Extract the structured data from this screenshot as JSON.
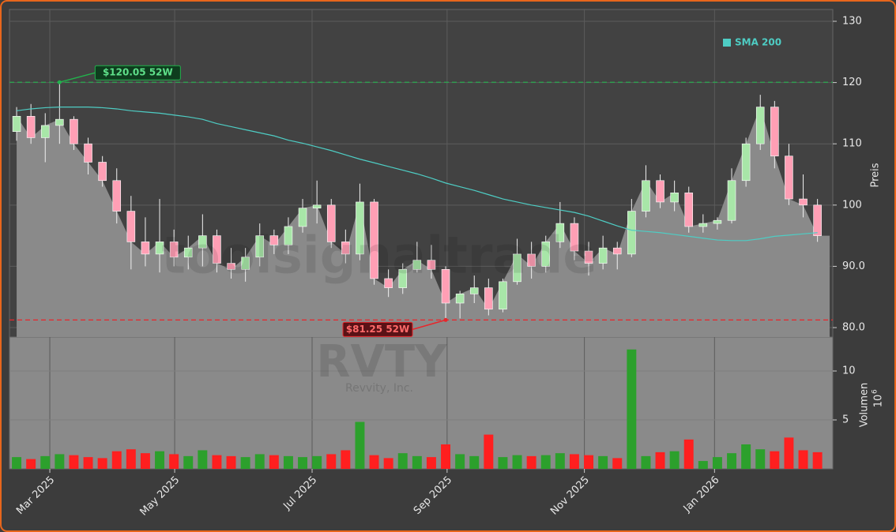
{
  "chart_data": {
    "type": "candlestick",
    "watermark": "toolsignaltrade",
    "ticker": "RVTY",
    "company": "Revvity, Inc.",
    "open": [
      112,
      114.5,
      111,
      113,
      114,
      110,
      107,
      104,
      99,
      94,
      92,
      94,
      91.5,
      93,
      95,
      90.5,
      89.5,
      91.5,
      95,
      93.5,
      96.5,
      99.5,
      100,
      94,
      92,
      100.5,
      88,
      86.5,
      89.5,
      91,
      89.5,
      84,
      85.5,
      86.5,
      83,
      87.5,
      92,
      90,
      94,
      97,
      92.5,
      90.5,
      93,
      92,
      99,
      104,
      100.5,
      102,
      96.5,
      97,
      97.5,
      104,
      110,
      116,
      108,
      101,
      100
    ],
    "high": [
      116,
      116.5,
      115,
      120.05,
      114.5,
      111,
      108,
      106,
      101.5,
      98,
      101,
      96,
      95,
      98.5,
      96,
      93,
      93,
      97,
      96,
      98,
      101,
      104,
      101,
      96,
      103.5,
      101,
      89.5,
      90.5,
      94,
      93.5,
      90,
      86,
      88.5,
      88,
      88,
      94.5,
      94,
      95,
      100.5,
      98,
      94,
      95,
      94,
      101,
      106.5,
      105,
      104,
      103,
      98.5,
      98,
      106,
      111,
      118,
      117,
      110,
      105,
      101
    ],
    "low": [
      110.5,
      110,
      107,
      110,
      109,
      105,
      103,
      97,
      89.5,
      90,
      89,
      90,
      89.5,
      90,
      89,
      88,
      87.5,
      90,
      92,
      92,
      95.5,
      97,
      93,
      90.5,
      91,
      87,
      85,
      85.5,
      89,
      88,
      81.25,
      81.5,
      84,
      82,
      82.5,
      87,
      88,
      89,
      93,
      91,
      88.5,
      89.5,
      89.5,
      91.5,
      98,
      99.5,
      99,
      95.5,
      95.5,
      96,
      97,
      103,
      109,
      106,
      100,
      98,
      94
    ],
    "close": [
      114.5,
      111,
      113,
      114,
      110,
      107,
      104,
      99,
      94,
      92,
      94,
      91.5,
      93,
      95,
      90.5,
      89.5,
      91.5,
      95,
      93.5,
      96.5,
      99.5,
      100,
      94,
      92,
      100.5,
      88,
      86.5,
      89.5,
      91,
      89.5,
      84,
      85.5,
      86.5,
      83,
      87.5,
      92,
      90,
      94,
      97,
      92.5,
      90.5,
      93,
      92,
      99,
      104,
      100.5,
      102,
      96.5,
      97,
      97.5,
      104,
      110,
      116,
      108,
      101,
      100,
      95
    ],
    "volume": [
      1.2,
      1.0,
      1.3,
      1.5,
      1.4,
      1.2,
      1.1,
      1.8,
      2.0,
      1.6,
      1.8,
      1.5,
      1.3,
      1.9,
      1.4,
      1.3,
      1.2,
      1.5,
      1.4,
      1.3,
      1.2,
      1.3,
      1.5,
      1.9,
      4.8,
      1.4,
      1.1,
      1.6,
      1.3,
      1.2,
      2.5,
      1.5,
      1.3,
      3.5,
      1.2,
      1.4,
      1.3,
      1.4,
      1.6,
      1.5,
      1.4,
      1.3,
      1.1,
      12.2,
      1.3,
      1.7,
      1.8,
      3.0,
      0.8,
      1.2,
      1.6,
      2.5,
      2.0,
      1.8,
      3.2,
      1.9,
      1.7
    ],
    "sma": {
      "name": "SMA 200",
      "color": "#4ecdc4",
      "values": [
        115.4,
        115.7,
        115.9,
        116,
        116,
        116,
        115.9,
        115.7,
        115.4,
        115.2,
        115,
        114.7,
        114.4,
        114,
        113.3,
        112.8,
        112.3,
        111.8,
        111.3,
        110.6,
        110.1,
        109.5,
        108.9,
        108.2,
        107.5,
        106.9,
        106.3,
        105.7,
        105.1,
        104.4,
        103.6,
        103,
        102.4,
        101.7,
        101,
        100.5,
        100,
        99.6,
        99.2,
        98.8,
        98.2,
        97.4,
        96.6,
        95.9,
        95.7,
        95.5,
        95.2,
        94.9,
        94.6,
        94.3,
        94.2,
        94.2,
        94.5,
        94.9,
        95.1,
        95.3,
        95.5
      ]
    },
    "up_color": "#2ca02c",
    "down_color": "#ff1f1f",
    "high_52w": {
      "value": 120.05,
      "label": "$120.05 52W",
      "index": 3,
      "color": "#22b14c"
    },
    "low_52w": {
      "value": 81.25,
      "label": "$81.25 52W",
      "index": 30,
      "color": "#e8262b"
    },
    "xlim": [
      -0.5,
      57.07
    ],
    "xticks": [
      {
        "value": 2.32,
        "label": "Mar 2025"
      },
      {
        "value": 11.05,
        "label": "May 2025"
      },
      {
        "value": 20.66,
        "label": "Jul 2025"
      },
      {
        "value": 30.1,
        "label": "Sep 2025"
      },
      {
        "value": 39.7,
        "label": "Nov 2025"
      },
      {
        "value": 48.8,
        "label": "Jan 2026"
      }
    ],
    "ylabel": "Preis",
    "ylim": [
      78.46,
      131.93
    ],
    "yticks": [
      {
        "value": 80,
        "label": "80.0"
      },
      {
        "value": 90,
        "label": "90.0"
      },
      100,
      110,
      120,
      130
    ],
    "y2label": "Volumen",
    "y2_offset": {
      "base": "10",
      "exponent": "6"
    },
    "y2lim": [
      0,
      13.47
    ],
    "y2ticks": [
      5,
      10
    ],
    "grid": true
  }
}
